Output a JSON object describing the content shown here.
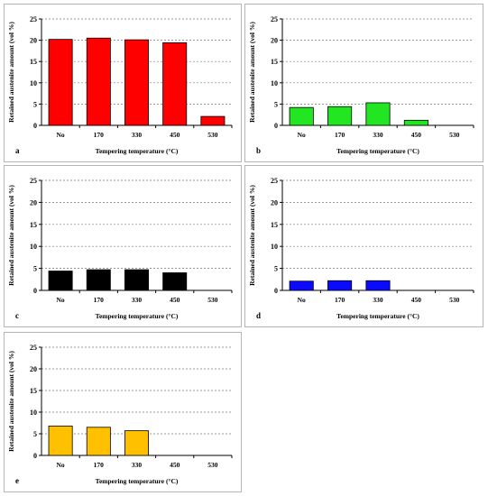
{
  "chart_data": [
    {
      "type": "bar",
      "panel_label": "a",
      "categories": [
        "No",
        "170",
        "330",
        "450",
        "530"
      ],
      "values": [
        20.2,
        20.5,
        20.1,
        19.4,
        2.1
      ],
      "xlabel": "Tempering temperature (°C)",
      "ylabel": "Retained austenite amount (vol %)",
      "ylim": [
        0,
        25
      ],
      "yticks": [
        0,
        5,
        10,
        15,
        20,
        25
      ],
      "grid": true,
      "color": "#ff0000"
    },
    {
      "type": "bar",
      "panel_label": "b",
      "categories": [
        "No",
        "170",
        "330",
        "450",
        "530"
      ],
      "values": [
        4.2,
        4.4,
        5.3,
        1.2,
        0
      ],
      "xlabel": "Tempering temperature (°C)",
      "ylabel": "Retained austenite amount (vol %)",
      "ylim": [
        0,
        25
      ],
      "yticks": [
        0,
        5,
        10,
        15,
        20,
        25
      ],
      "grid": true,
      "color": "#22e622"
    },
    {
      "type": "bar",
      "panel_label": "c",
      "categories": [
        "No",
        "170",
        "330",
        "450",
        "530"
      ],
      "values": [
        4.4,
        4.7,
        4.7,
        4.0,
        0
      ],
      "xlabel": "Tempering temperature (°C)",
      "ylabel": "Retained austenite amount (vol %)",
      "ylim": [
        0,
        25
      ],
      "yticks": [
        0,
        5,
        10,
        15,
        20,
        25
      ],
      "grid": true,
      "color": "#000000"
    },
    {
      "type": "bar",
      "panel_label": "d",
      "categories": [
        "No",
        "170",
        "330",
        "450",
        "530"
      ],
      "values": [
        2.1,
        2.2,
        2.2,
        0,
        0
      ],
      "xlabel": "Tempering temperature (°C)",
      "ylabel": "Retained austenite amount (vol %)",
      "ylim": [
        0,
        25
      ],
      "yticks": [
        0,
        5,
        10,
        15,
        20,
        25
      ],
      "grid": true,
      "color": "#0a0aff"
    },
    {
      "type": "bar",
      "panel_label": "e",
      "categories": [
        "No",
        "170",
        "330",
        "450",
        "530"
      ],
      "values": [
        6.8,
        6.5,
        5.7,
        0,
        0
      ],
      "xlabel": "Tempering temperature (°C)",
      "ylabel": "Retained austenite amount (vol %)",
      "ylim": [
        0,
        25
      ],
      "yticks": [
        0,
        5,
        10,
        15,
        20,
        25
      ],
      "grid": true,
      "color": "#ffc000"
    }
  ]
}
